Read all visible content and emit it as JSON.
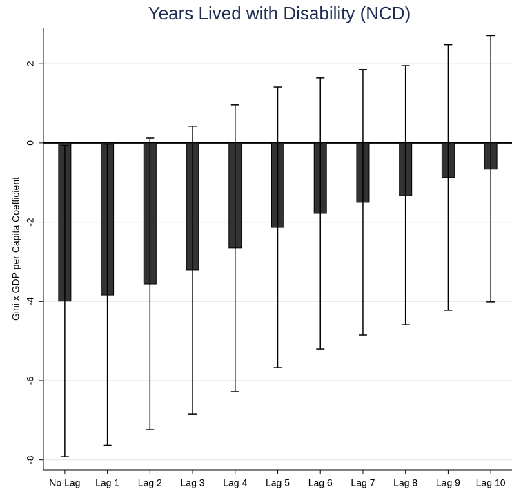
{
  "chart_data": {
    "type": "bar",
    "title": "Years Lived with Disability (NCD)",
    "y_label": "Gini x GDP per Capita Coefficient",
    "categories": [
      "No Lag",
      "Lag 1",
      "Lag 2",
      "Lag 3",
      "Lag 4",
      "Lag 5",
      "Lag 6",
      "Lag 7",
      "Lag 8",
      "Lag 9",
      "Lag 10"
    ],
    "values": [
      -3.99,
      -3.84,
      -3.56,
      -3.21,
      -2.65,
      -2.13,
      -1.78,
      -1.5,
      -1.33,
      -0.87,
      -0.66
    ],
    "lower": [
      -7.92,
      -7.63,
      -7.24,
      -6.84,
      -6.28,
      -5.67,
      -5.2,
      -4.85,
      -4.59,
      -4.22,
      -4.01
    ],
    "upper": [
      -0.07,
      -0.03,
      0.12,
      0.42,
      0.96,
      1.41,
      1.64,
      1.85,
      1.95,
      2.48,
      2.71
    ],
    "color": "#333333",
    "error_color": "#000000",
    "reference_line": 0,
    "ylim": [
      -8.25,
      2.91
    ],
    "yticks": [
      -8,
      -6,
      -4,
      -2,
      0,
      2
    ],
    "grid": true
  }
}
